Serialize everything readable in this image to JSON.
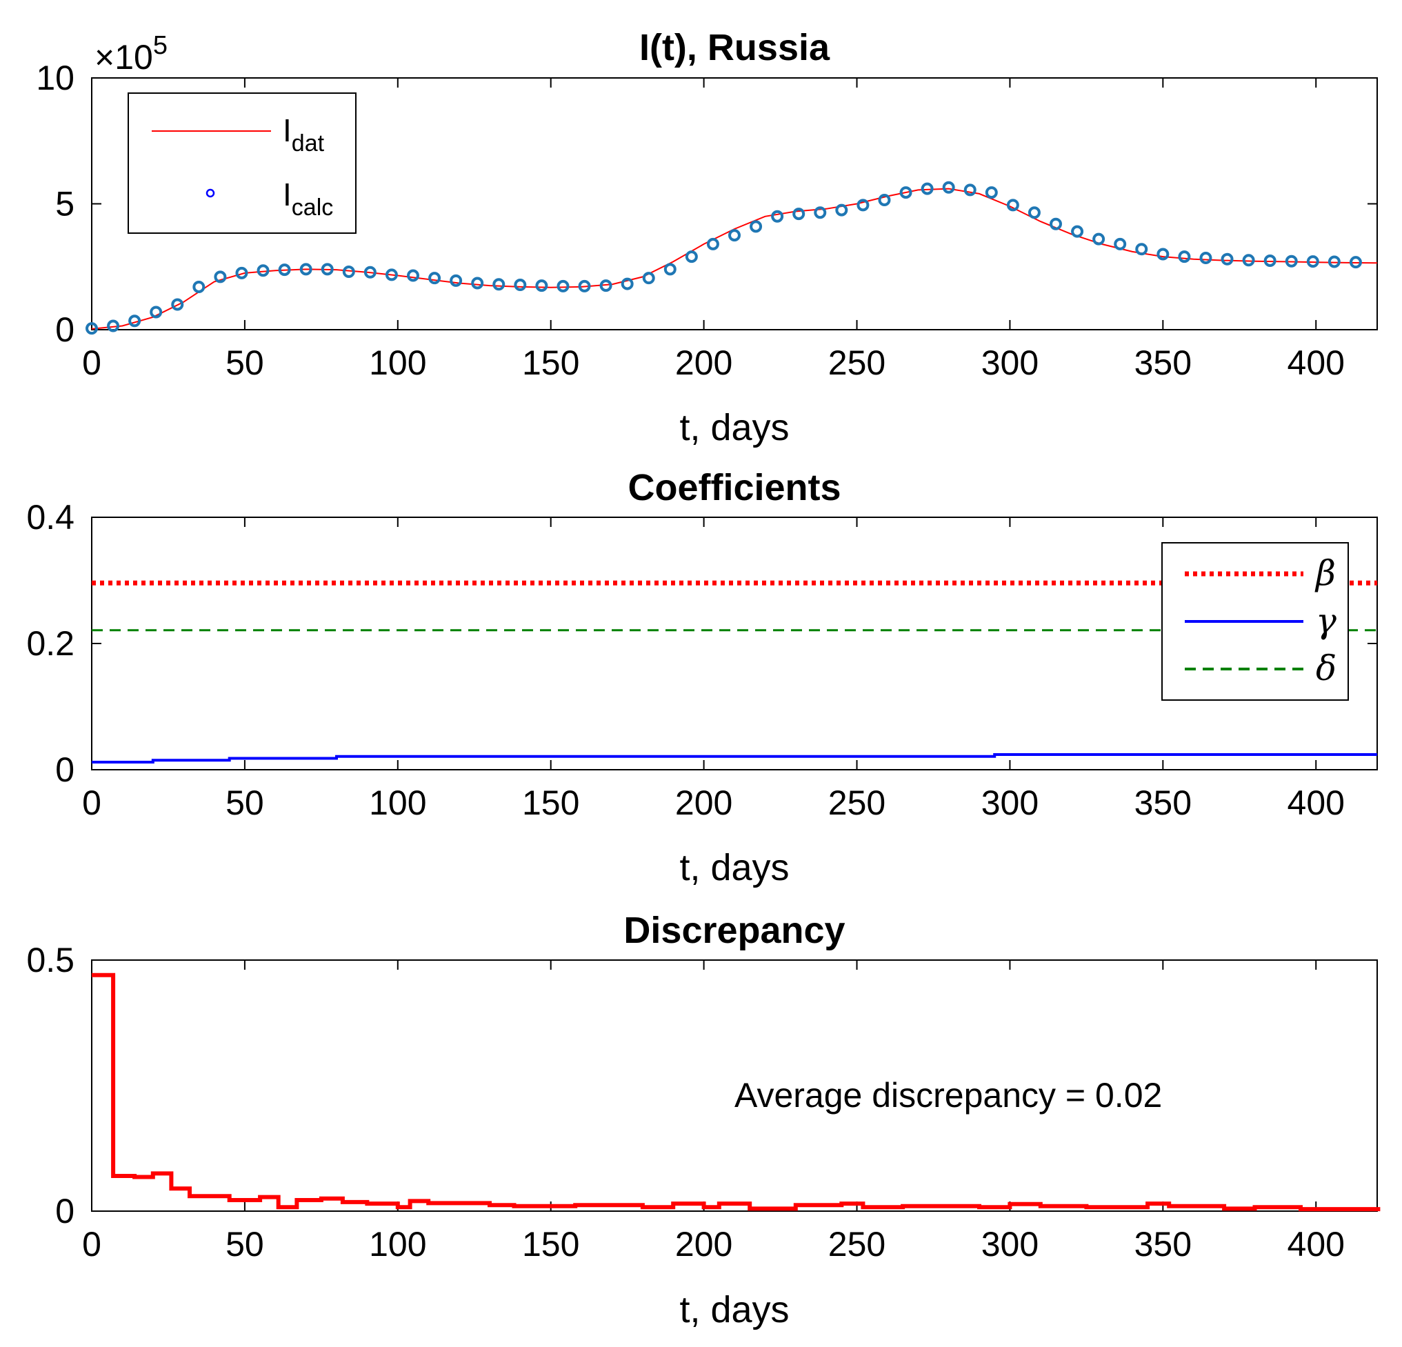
{
  "chart_data": [
    {
      "type": "line",
      "title": "I(t), Russia",
      "xlabel": "t, days",
      "ylabel": "",
      "xlim": [
        0,
        420
      ],
      "ylim": [
        0,
        1000000
      ],
      "xticks": [
        0,
        50,
        100,
        150,
        200,
        250,
        300,
        350,
        400
      ],
      "yticks": [
        0,
        5,
        10
      ],
      "ytick_labels": [
        "0",
        "5",
        "10"
      ],
      "y_exponent": {
        "times": "×10",
        "power": "5"
      },
      "legend": {
        "position": "top-left",
        "entries": [
          {
            "base": "I",
            "sub": "dat"
          },
          {
            "base": "I",
            "sub": "calc"
          }
        ]
      },
      "colors": {
        "data": "#ff0000",
        "markers": "#1f77b4",
        "legend_marker": "#0000ff"
      },
      "series": [
        {
          "name": "I_dat",
          "style": "line",
          "x": [
            0,
            10,
            20,
            30,
            40,
            50,
            60,
            70,
            80,
            90,
            100,
            110,
            120,
            130,
            140,
            150,
            160,
            170,
            180,
            190,
            200,
            210,
            220,
            230,
            240,
            250,
            260,
            270,
            280,
            290,
            300,
            310,
            320,
            330,
            340,
            350,
            360,
            370,
            380,
            390,
            400,
            410,
            420
          ],
          "y": [
            3000,
            15000,
            50000,
            110000,
            190000,
            225000,
            235000,
            240000,
            238000,
            228000,
            215000,
            200000,
            185000,
            175000,
            170000,
            168000,
            170000,
            180000,
            210000,
            270000,
            340000,
            400000,
            450000,
            470000,
            480000,
            500000,
            530000,
            555000,
            560000,
            540000,
            490000,
            430000,
            380000,
            340000,
            310000,
            290000,
            280000,
            275000,
            272000,
            270000,
            268000,
            266000,
            265000
          ]
        },
        {
          "name": "I_calc",
          "style": "markers",
          "x": [
            0,
            7,
            14,
            21,
            28,
            35,
            42,
            49,
            56,
            63,
            70,
            77,
            84,
            91,
            98,
            105,
            112,
            119,
            126,
            133,
            140,
            147,
            154,
            161,
            168,
            175,
            182,
            189,
            196,
            203,
            210,
            217,
            224,
            231,
            238,
            245,
            252,
            259,
            266,
            273,
            280,
            287,
            294,
            301,
            308,
            315,
            322,
            329,
            336,
            343,
            350,
            357,
            364,
            371,
            378,
            385,
            392,
            399,
            406,
            413
          ],
          "y": [
            5000,
            15000,
            35000,
            70000,
            100000,
            170000,
            210000,
            225000,
            235000,
            238000,
            240000,
            240000,
            230000,
            228000,
            218000,
            215000,
            205000,
            195000,
            185000,
            180000,
            178000,
            175000,
            173000,
            173000,
            175000,
            182000,
            205000,
            240000,
            290000,
            340000,
            375000,
            410000,
            450000,
            460000,
            465000,
            475000,
            495000,
            515000,
            545000,
            560000,
            565000,
            555000,
            545000,
            495000,
            465000,
            420000,
            390000,
            360000,
            340000,
            320000,
            300000,
            290000,
            285000,
            280000,
            276000,
            274000,
            272000,
            271000,
            270000,
            268000
          ]
        }
      ]
    },
    {
      "type": "line",
      "title": "Coefficients",
      "xlabel": "t, days",
      "ylabel": "",
      "xlim": [
        0,
        420
      ],
      "ylim": [
        0,
        0.4
      ],
      "xticks": [
        0,
        50,
        100,
        150,
        200,
        250,
        300,
        350,
        400
      ],
      "yticks": [
        0,
        0.2,
        0.4
      ],
      "ytick_labels": [
        "0",
        "0.2",
        "0.4"
      ],
      "legend": {
        "position": "top-right",
        "entries": [
          {
            "symbol": "β",
            "style": "dotted",
            "color": "#ff0000"
          },
          {
            "symbol": "γ",
            "style": "solid",
            "color": "#0000ff"
          },
          {
            "symbol": "δ",
            "style": "dashed",
            "color": "#008000"
          }
        ]
      },
      "series": [
        {
          "name": "β",
          "style": "dotted",
          "color": "#ff0000",
          "x": [
            0,
            420
          ],
          "y": [
            0.296,
            0.296
          ]
        },
        {
          "name": "γ",
          "style": "solid",
          "color": "#0000ff",
          "x": [
            0,
            20,
            20,
            45,
            45,
            80,
            80,
            295,
            295,
            420
          ],
          "y": [
            0.012,
            0.012,
            0.015,
            0.015,
            0.018,
            0.018,
            0.021,
            0.021,
            0.024,
            0.024
          ]
        },
        {
          "name": "δ",
          "style": "dashed",
          "color": "#008000",
          "x": [
            0,
            420
          ],
          "y": [
            0.221,
            0.221
          ]
        }
      ]
    },
    {
      "type": "line",
      "title": "Discrepancy",
      "xlabel": "t, days",
      "ylabel": "",
      "xlim": [
        0,
        420
      ],
      "ylim": [
        0,
        0.5
      ],
      "xticks": [
        0,
        50,
        100,
        150,
        200,
        250,
        300,
        350,
        400
      ],
      "yticks": [
        0,
        0.5
      ],
      "ytick_labels": [
        "0",
        "0.5"
      ],
      "annotation": "Average discrepancy = 0.02",
      "colors": {
        "line": "#ff0000"
      },
      "series": [
        {
          "name": "discrepancy",
          "style": "step",
          "x": [
            0,
            7,
            7,
            14,
            14,
            20,
            20,
            26,
            26,
            32,
            32,
            45,
            45,
            55,
            55,
            61,
            61,
            67,
            67,
            75,
            75,
            82,
            82,
            90,
            90,
            100,
            100,
            104,
            104,
            110,
            110,
            130,
            130,
            138,
            138,
            158,
            158,
            180,
            180,
            190,
            190,
            200,
            200,
            205,
            205,
            215,
            215,
            230,
            230,
            245,
            245,
            252,
            252,
            265,
            265,
            290,
            290,
            300,
            300,
            310,
            310,
            325,
            325,
            345,
            345,
            352,
            352,
            370,
            370,
            380,
            380,
            395,
            395,
            421
          ],
          "y": [
            0.47,
            0.47,
            0.07,
            0.07,
            0.068,
            0.068,
            0.075,
            0.075,
            0.045,
            0.045,
            0.03,
            0.03,
            0.022,
            0.022,
            0.028,
            0.028,
            0.008,
            0.008,
            0.022,
            0.022,
            0.025,
            0.025,
            0.018,
            0.018,
            0.015,
            0.015,
            0.008,
            0.008,
            0.02,
            0.02,
            0.016,
            0.016,
            0.012,
            0.012,
            0.01,
            0.01,
            0.012,
            0.012,
            0.008,
            0.008,
            0.015,
            0.015,
            0.008,
            0.008,
            0.015,
            0.015,
            0.005,
            0.005,
            0.012,
            0.012,
            0.015,
            0.015,
            0.008,
            0.008,
            0.01,
            0.01,
            0.008,
            0.008,
            0.014,
            0.014,
            0.01,
            0.01,
            0.008,
            0.008,
            0.015,
            0.015,
            0.01,
            0.01,
            0.005,
            0.005,
            0.008,
            0.008,
            0.004,
            0.004
          ]
        }
      ]
    }
  ]
}
